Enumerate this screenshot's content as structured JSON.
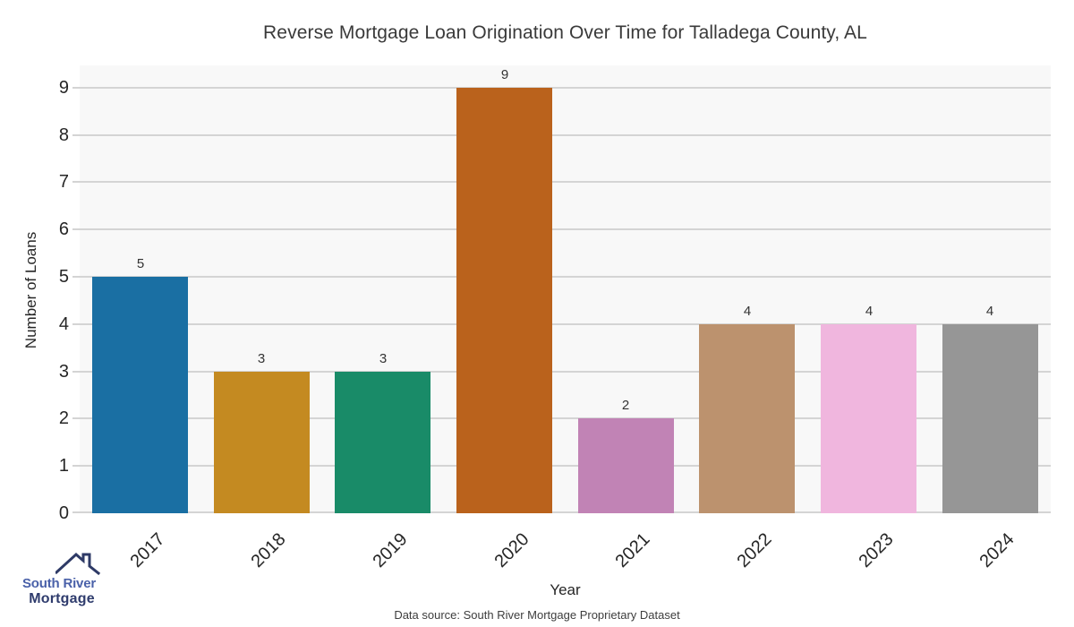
{
  "chart_data": {
    "type": "bar",
    "title": "Reverse Mortgage Loan Origination Over Time for Talladega County, AL",
    "categories": [
      "2017",
      "2018",
      "2019",
      "2020",
      "2021",
      "2022",
      "2023",
      "2024"
    ],
    "values": [
      5,
      3,
      3,
      9,
      2,
      4,
      4,
      4
    ],
    "value_labels": [
      "5",
      "3",
      "3",
      "9",
      "2",
      "4",
      "4",
      "4"
    ],
    "xlabel": "Year",
    "ylabel": "Number of Loans",
    "ylim": [
      0,
      9.47
    ],
    "yticks": [
      0,
      1,
      2,
      3,
      4,
      5,
      6,
      7,
      8,
      9
    ],
    "grid": true,
    "legend_position": "none",
    "bar_colors": [
      "#1a6fa3",
      "#c48a21",
      "#198b68",
      "#ba621c",
      "#c183b5",
      "#bc926e",
      "#f0b6de",
      "#969696"
    ],
    "plot_background": "#f8f8f8",
    "gridline_color": "#d4d4d4"
  },
  "footer": {
    "data_source": "Data source: South River Mortgage Proprietary Dataset",
    "logo": {
      "line1": "South River",
      "line2": "Mortgage",
      "line1_color": "#4a61a9",
      "line2_color": "#2f3c6d",
      "roof_color": "#2e3a66",
      "roof_icon": "house-roof-icon"
    }
  }
}
